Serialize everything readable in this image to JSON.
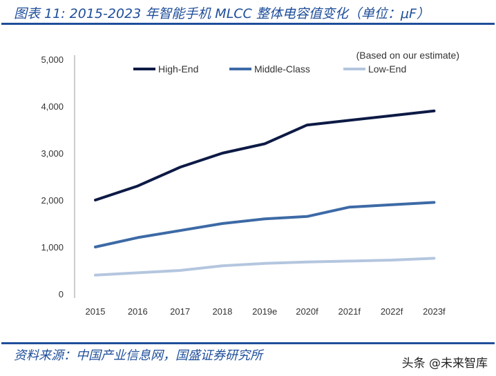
{
  "header": {
    "title": "图表 11:  2015-2023 年智能手机 MLCC 整体电容值变化（单位：μF）"
  },
  "footer": {
    "source": "资料来源：中国产业信息网，国盛证券研究所",
    "watermark": "头条 @未来智库"
  },
  "chart_data": {
    "type": "line",
    "title": "",
    "annotation": "(Based on our estimate)",
    "xlabel": "",
    "ylabel": "",
    "categories": [
      "2015",
      "2016",
      "2017",
      "2018",
      "2019e",
      "2020f",
      "2021f",
      "2022f",
      "2023f"
    ],
    "ylim": [
      0,
      5000
    ],
    "yticks": [
      0,
      1000,
      2000,
      3000,
      4000,
      5000
    ],
    "ytick_labels": [
      "0",
      "1,000",
      "2,000",
      "3,000",
      "4,000",
      "5,000"
    ],
    "grid": false,
    "legend": "top",
    "series": [
      {
        "name": "High-End",
        "color": "#0d1a45",
        "values": [
          2000,
          2300,
          2700,
          3000,
          3200,
          3600,
          3700,
          3800,
          3900
        ]
      },
      {
        "name": "Middle-Class",
        "color": "#3d6aa6",
        "values": [
          1000,
          1200,
          1350,
          1500,
          1600,
          1650,
          1850,
          1900,
          1950
        ]
      },
      {
        "name": "Low-End",
        "color": "#b4c6df",
        "values": [
          400,
          450,
          500,
          600,
          650,
          680,
          700,
          720,
          760
        ]
      }
    ]
  }
}
